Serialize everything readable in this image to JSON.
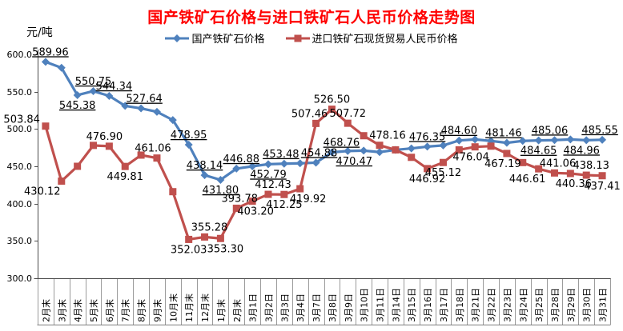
{
  "chart_data": {
    "type": "line",
    "title": "国产铁矿石价格与进口铁矿石人民币价格走势图",
    "title_color": "#FF0000",
    "unit_label": "元/吨",
    "ylim": [
      300,
      600
    ],
    "ytick_labels": [
      "600.0",
      "550.0",
      "500.0",
      "450.0",
      "400.0",
      "350.0",
      "300.0"
    ],
    "grid": false,
    "legend_position": "top",
    "categories": [
      "2月末",
      "3月末",
      "4月末",
      "5月末",
      "6月末",
      "7月末",
      "8月末",
      "9月末",
      "10月末",
      "11月末",
      "12月末",
      "1月末",
      "2月末",
      "3月1日",
      "3月2日",
      "3月3日",
      "3月4日",
      "3月7日",
      "3月8日",
      "3月9日",
      "3月10日",
      "3月11日",
      "3月14日",
      "3月15日",
      "3月16日",
      "3月17日",
      "3月18日",
      "3月21日",
      "3月22日",
      "3月23日",
      "3月24日",
      "3月25日",
      "3月28日",
      "3月29日",
      "3月30日",
      "3月31日"
    ],
    "series": [
      {
        "name": "国产铁矿石价格",
        "color": "#4F81BD",
        "marker": "diamond",
        "label_underline": true,
        "values": [
          589.96,
          582,
          545.38,
          550.75,
          544.34,
          531,
          527.64,
          523,
          512,
          478.95,
          438.14,
          431.8,
          446.88,
          450,
          452.79,
          453.48,
          454,
          454.88,
          468.76,
          470.47,
          471,
          469,
          472,
          474,
          476.35,
          478,
          484.6,
          486,
          484,
          481.46,
          484,
          484.65,
          485.06,
          486,
          484.96,
          485.55
        ],
        "labeled_points": [
          {
            "i": 0,
            "text": "589.96",
            "pos": "above",
            "dx": 6
          },
          {
            "i": 2,
            "text": "545.38",
            "pos": "below"
          },
          {
            "i": 3,
            "text": "550.75",
            "pos": "above"
          },
          {
            "i": 4,
            "text": "544.34",
            "pos": "above",
            "dx": 6
          },
          {
            "i": 6,
            "text": "527.64",
            "pos": "above",
            "dx": 4
          },
          {
            "i": 9,
            "text": "478.95",
            "pos": "above"
          },
          {
            "i": 10,
            "text": "438.14",
            "pos": "above"
          },
          {
            "i": 11,
            "text": "431.80",
            "pos": "below"
          },
          {
            "i": 12,
            "text": "446.88",
            "pos": "above",
            "dx": 6
          },
          {
            "i": 14,
            "text": "452.79",
            "pos": "below"
          },
          {
            "i": 15,
            "text": "453.48",
            "pos": "above",
            "dx": -4
          },
          {
            "i": 17,
            "text": "454.88",
            "pos": "above",
            "dx": 4
          },
          {
            "i": 18,
            "text": "468.76",
            "pos": "above",
            "dx": 12
          },
          {
            "i": 19,
            "text": "470.47",
            "pos": "below",
            "dx": 8
          },
          {
            "i": 24,
            "text": "476.35",
            "pos": "above"
          },
          {
            "i": 26,
            "text": "484.60",
            "pos": "above"
          },
          {
            "i": 29,
            "text": "481.46",
            "pos": "above",
            "dx": -4
          },
          {
            "i": 31,
            "text": "484.65",
            "pos": "below"
          },
          {
            "i": 32,
            "text": "485.06",
            "pos": "above",
            "dx": -6
          },
          {
            "i": 34,
            "text": "484.96",
            "pos": "below",
            "dx": -6
          },
          {
            "i": 35,
            "text": "485.55",
            "pos": "above",
            "dx": -3
          }
        ]
      },
      {
        "name": "进口铁矿石现货贸易人民币价格",
        "color": "#C0504D",
        "marker": "square",
        "label_underline": false,
        "values": [
          503.84,
          430.12,
          450,
          478,
          476.9,
          449.81,
          465,
          461.06,
          416,
          352.03,
          355.28,
          353.3,
          393.78,
          403.2,
          412.43,
          412.25,
          419.92,
          507.46,
          526.5,
          507.72,
          491,
          478.16,
          472,
          462,
          446.92,
          455.12,
          472,
          476.04,
          477,
          467.19,
          455,
          446.61,
          441.06,
          440.36,
          438.13,
          437.41
        ],
        "labeled_points": [
          {
            "i": 0,
            "text": "503.84",
            "pos": "left"
          },
          {
            "i": 1,
            "text": "430.12",
            "pos": "below",
            "dx": -24
          },
          {
            "i": 4,
            "text": "476.90",
            "pos": "above",
            "dx": -6
          },
          {
            "i": 5,
            "text": "449.81",
            "pos": "below"
          },
          {
            "i": 7,
            "text": "461.06",
            "pos": "above",
            "dx": -5
          },
          {
            "i": 9,
            "text": "352.03",
            "pos": "below"
          },
          {
            "i": 10,
            "text": "355.28",
            "pos": "above",
            "dx": 6
          },
          {
            "i": 11,
            "text": "353.30",
            "pos": "below",
            "dx": 6
          },
          {
            "i": 12,
            "text": "393.78",
            "pos": "above",
            "dx": 4
          },
          {
            "i": 13,
            "text": "403.20",
            "pos": "below",
            "dx": 4
          },
          {
            "i": 14,
            "text": "412.43",
            "pos": "above",
            "dx": 6
          },
          {
            "i": 15,
            "text": "412.25",
            "pos": "below"
          },
          {
            "i": 16,
            "text": "419.92",
            "pos": "below",
            "dx": 10
          },
          {
            "i": 17,
            "text": "507.46",
            "pos": "above",
            "dx": -8
          },
          {
            "i": 18,
            "text": "526.50",
            "pos": "above"
          },
          {
            "i": 19,
            "text": "507.72",
            "pos": "above"
          },
          {
            "i": 21,
            "text": "478.16",
            "pos": "above",
            "dx": 10
          },
          {
            "i": 24,
            "text": "446.92",
            "pos": "below"
          },
          {
            "i": 25,
            "text": "455.12",
            "pos": "below"
          },
          {
            "i": 27,
            "text": "476.04",
            "pos": "below",
            "dx": -5
          },
          {
            "i": 29,
            "text": "467.19",
            "pos": "below",
            "dx": -5
          },
          {
            "i": 31,
            "text": "446.61",
            "pos": "below",
            "dx": -14
          },
          {
            "i": 32,
            "text": "441.06",
            "pos": "above",
            "dx": 4
          },
          {
            "i": 33,
            "text": "440.36",
            "pos": "below",
            "dx": 4
          },
          {
            "i": 34,
            "text": "438.13",
            "pos": "above",
            "dx": 6
          },
          {
            "i": 35,
            "text": "437.41",
            "pos": "below"
          }
        ]
      }
    ]
  }
}
